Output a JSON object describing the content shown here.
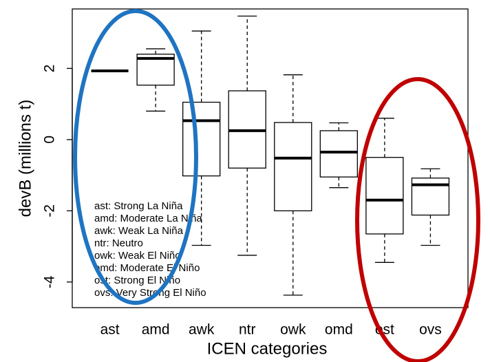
{
  "chart_data": {
    "type": "box",
    "x_label": "ICEN categories",
    "y_label": "devB (millions t)",
    "categories": [
      "ast",
      "amd",
      "awk",
      "ntr",
      "owk",
      "omd",
      "ost",
      "ovs"
    ],
    "min": [
      1.93,
      0.8,
      -2.97,
      -3.25,
      -4.37,
      -1.35,
      -3.45,
      -2.97
    ],
    "q1": [
      1.93,
      1.53,
      -1.02,
      -0.8,
      -2.0,
      -1.05,
      -2.65,
      -2.12
    ],
    "median": [
      1.93,
      2.28,
      0.53,
      0.25,
      -0.52,
      -0.35,
      -1.7,
      -1.27
    ],
    "q3": [
      1.93,
      2.4,
      1.05,
      1.37,
      0.48,
      0.25,
      -0.5,
      -1.08
    ],
    "max": [
      1.93,
      2.55,
      3.05,
      3.47,
      1.82,
      0.47,
      0.6,
      -0.82
    ],
    "ylim": [
      -4.72,
      3.67
    ],
    "yticks": [
      -4,
      -2,
      0,
      2
    ],
    "legend_text": [
      "ast: Strong La Niña",
      "amd: Moderate La Niña",
      "awk: Weak La Niña",
      "ntr: Neutro",
      "owk: Weak El Niño",
      "omd: Moderate El Niño",
      "ost: Strong El Niño",
      "ovs: Very Strong El Niño"
    ]
  }
}
